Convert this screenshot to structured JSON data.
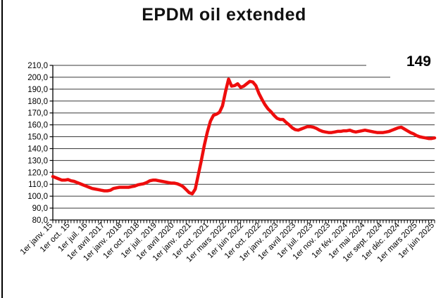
{
  "chart_data": {
    "type": "line",
    "title": "EPDM oil extended",
    "annotation": {
      "text": "149",
      "position": "top-right"
    },
    "legend": "none",
    "grid": "horizontal",
    "colors": {
      "line": "#ee0d0d",
      "grid": "#3a3a3a",
      "axis": "#000000",
      "text": "#000000"
    },
    "y_axis": {
      "min": 80,
      "max": 210,
      "tick_step": 10,
      "tick_labels": [
        "210,0",
        "200,0",
        "190,0",
        "180,0",
        "170,0",
        "160,0",
        "150,0",
        "140,0",
        "130,0",
        "120,0",
        "110,0",
        "100,0",
        "90,0",
        "80,0"
      ]
    },
    "x_axis": {
      "tick_labels": [
        "1er janv. 15",
        "1er oct. 15",
        "1er juil. 16",
        "1er avril 2017",
        "1er janv. 2018",
        "1er oct. 2018",
        "1er juil. 2019",
        "1er avril 2020",
        "1er janv. 2021",
        "1er oct. 2021",
        "1er mars 2022",
        "1er juin 2022",
        "1er oct. 2022",
        "1er janv. 2023",
        "1er avril 2023",
        "1er juil. 2023",
        "1er nov. 2023",
        "1er fév. 2024",
        "1er mai 2024",
        "1er sept. 2024",
        "1er déc. 2024",
        "1er mars 2025",
        "1er juin 2025"
      ]
    },
    "series": [
      {
        "name": "EPDM oil extended",
        "values": [
          116.5,
          115.5,
          114.5,
          113.5,
          113.5,
          114,
          113,
          112.5,
          111.5,
          110.5,
          109.5,
          108.5,
          107.5,
          106.5,
          106,
          105.5,
          105,
          104.5,
          104.5,
          105,
          106.5,
          107,
          107.5,
          107.5,
          107.5,
          107.5,
          108,
          108.5,
          109.5,
          110,
          110.5,
          111.5,
          113,
          113.5,
          113.5,
          113,
          112.5,
          112,
          111.5,
          111,
          111,
          110.5,
          109.5,
          108,
          105.5,
          103,
          102,
          106,
          118,
          130,
          143,
          154,
          163,
          168,
          169,
          170.5,
          176,
          188,
          198.5,
          192.5,
          193,
          194.5,
          191.5,
          192.5,
          194.5,
          196.5,
          196,
          193,
          186.5,
          181.5,
          177,
          173.5,
          171,
          168,
          165.5,
          164.5,
          164.5,
          162,
          160,
          157.5,
          156,
          155.5,
          156.5,
          157.5,
          158.5,
          158.5,
          158,
          157,
          155.5,
          154.5,
          154,
          153.5,
          153.5,
          154,
          154.5,
          154.5,
          155,
          155,
          155.5,
          154.5,
          154,
          154.5,
          155,
          155.5,
          155,
          154.5,
          154,
          153.5,
          153.5,
          153.5,
          154,
          154.5,
          155.5,
          156.5,
          157.5,
          158,
          156.5,
          155,
          153.5,
          152.5,
          151,
          150,
          149.5,
          149,
          148.5,
          148.5,
          149
        ]
      }
    ]
  }
}
